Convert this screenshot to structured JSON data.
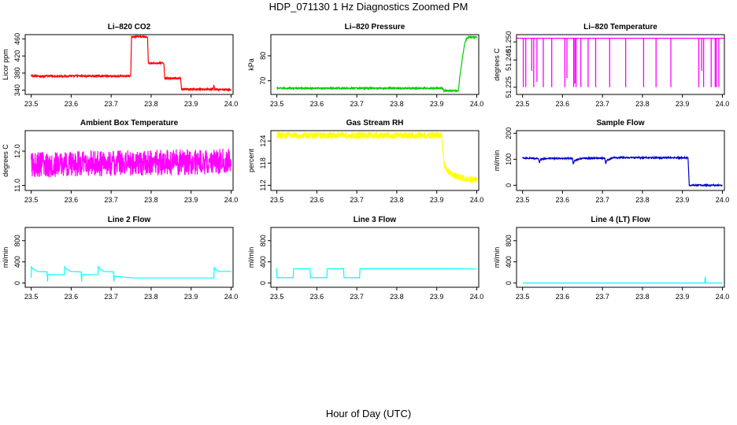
{
  "figure": {
    "title": "HDP_071130  1 Hz Diagnostics Zoomed PM",
    "xlabel": "Hour of Day (UTC)"
  },
  "chart_data": [
    {
      "type": "line",
      "title": "Li–820 CO2",
      "xlabel": "",
      "ylabel": "Licor ppm",
      "color": "#ff0000",
      "xlim": [
        23.485,
        24.005
      ],
      "ylim": [
        330,
        470
      ],
      "xticks": [
        "23.5",
        "23.6",
        "23.7",
        "23.8",
        "23.9",
        "24.0"
      ],
      "yticks": [
        "340",
        "380",
        "420",
        "460"
      ],
      "series": [
        {
          "style": "noisy",
          "noise": 2,
          "x": [
            23.5,
            23.749,
            23.751,
            23.791,
            23.793,
            23.832,
            23.834,
            23.874,
            23.876,
            23.955,
            23.957,
            23.959,
            23.961,
            24.0
          ],
          "y": [
            373,
            373,
            465,
            465,
            403,
            403,
            368,
            368,
            342,
            342,
            352,
            342,
            342,
            341
          ]
        }
      ]
    },
    {
      "type": "line",
      "title": "Li–820 Pressure",
      "xlabel": "",
      "ylabel": "kPa",
      "color": "#00cc00",
      "xlim": [
        23.485,
        24.005
      ],
      "ylim": [
        64.5,
        88.5
      ],
      "xticks": [
        "23.5",
        "23.6",
        "23.7",
        "23.8",
        "23.9",
        "24.0"
      ],
      "yticks": [
        "70",
        "80"
      ],
      "series": [
        {
          "style": "noisy",
          "noise": 0.25,
          "x": [
            23.5,
            23.915,
            23.917,
            23.954,
            23.958,
            23.965,
            23.97,
            23.975,
            23.98,
            24.0
          ],
          "y": [
            67.0,
            67.0,
            66.0,
            66.0,
            72,
            80,
            85,
            87,
            87.5,
            87.5
          ]
        }
      ]
    },
    {
      "type": "line",
      "title": "Li–820 Temperature",
      "xlabel": "",
      "ylabel": "degrees C",
      "color": "#ff00ff",
      "xlim": [
        23.485,
        24.005
      ],
      "ylim": [
        51.221,
        51.254
      ],
      "xticks": [
        "23.5",
        "23.6",
        "23.7",
        "23.8",
        "23.9",
        "24.0"
      ],
      "yticks": [
        "51.225",
        "51.240",
        "51.250"
      ],
      "series": [
        {
          "style": "spikes",
          "base": 51.252,
          "spikes": [
            [
              23.502,
              51.225
            ],
            [
              23.508,
              51.225
            ],
            [
              23.523,
              51.234
            ],
            [
              23.528,
              51.225
            ],
            [
              23.536,
              51.228
            ],
            [
              23.552,
              51.225
            ],
            [
              23.573,
              51.225
            ],
            [
              23.606,
              51.225
            ],
            [
              23.611,
              51.23
            ],
            [
              23.628,
              51.225
            ],
            [
              23.631,
              51.227
            ],
            [
              23.634,
              51.225
            ],
            [
              23.646,
              51.225
            ],
            [
              23.664,
              51.225
            ],
            [
              23.683,
              51.225
            ],
            [
              23.718,
              51.225
            ],
            [
              23.758,
              51.225
            ],
            [
              23.803,
              51.225
            ],
            [
              23.834,
              51.225
            ],
            [
              23.871,
              51.225
            ],
            [
              23.941,
              51.225
            ],
            [
              23.948,
              51.234
            ],
            [
              23.953,
              51.225
            ],
            [
              23.972,
              51.225
            ],
            [
              23.982,
              51.225
            ],
            [
              23.985,
              51.225
            ],
            [
              23.991,
              51.225
            ]
          ]
        }
      ]
    },
    {
      "type": "line",
      "title": "Ambient Box Temperature",
      "xlabel": "",
      "ylabel": "degrees C",
      "color": "#ff00ff",
      "xlim": [
        23.485,
        24.005
      ],
      "ylim": [
        10.85,
        12.6
      ],
      "xticks": [
        "23.5",
        "23.6",
        "23.7",
        "23.8",
        "23.9",
        "24.0"
      ],
      "yticks": [
        "11.0",
        "12.0"
      ],
      "series": [
        {
          "style": "noisy",
          "noise": 0.38,
          "x": [
            23.5,
            24.0
          ],
          "y": [
            11.6,
            11.7
          ]
        }
      ]
    },
    {
      "type": "line",
      "title": "Gas Stream RH",
      "xlabel": "",
      "ylabel": "percent",
      "color": "#ffff00",
      "xlim": [
        23.485,
        24.005
      ],
      "ylim": [
        110.6,
        126.8
      ],
      "xticks": [
        "23.5",
        "23.6",
        "23.7",
        "23.8",
        "23.9",
        "24.0"
      ],
      "yticks": [
        "112",
        "118",
        "124"
      ],
      "series": [
        {
          "style": "noisy",
          "noise": 0.9,
          "x": [
            23.5,
            23.912,
            23.918,
            23.925,
            23.94,
            23.97,
            24.0
          ],
          "y": [
            125.5,
            125.5,
            118,
            116,
            114.8,
            113.8,
            113.5
          ]
        }
      ]
    },
    {
      "type": "line",
      "title": "Sample Flow",
      "xlabel": "",
      "ylabel": "ml/min",
      "color": "#0000cc",
      "xlim": [
        23.485,
        24.005
      ],
      "ylim": [
        -20,
        210
      ],
      "xticks": [
        "23.5",
        "23.6",
        "23.7",
        "23.8",
        "23.9",
        "24.0"
      ],
      "yticks": [
        "0",
        "100",
        "200"
      ],
      "series": [
        {
          "style": "noisy",
          "noise": 2.5,
          "x": [
            23.5,
            23.54,
            23.542,
            23.545,
            23.56,
            23.625,
            23.627,
            23.63,
            23.645,
            23.706,
            23.708,
            23.711,
            23.725,
            23.914,
            23.917,
            24.0
          ],
          "y": [
            105,
            103,
            85,
            98,
            104,
            103,
            80,
            95,
            103,
            105,
            82,
            96,
            106,
            106,
            0,
            0
          ]
        }
      ]
    },
    {
      "type": "line",
      "title": "Line 2 Flow",
      "xlabel": "",
      "ylabel": "ml/min",
      "color": "#00ffff",
      "xlim": [
        23.485,
        24.005
      ],
      "ylim": [
        -80,
        1050
      ],
      "xticks": [
        "23.5",
        "23.6",
        "23.7",
        "23.8",
        "23.9",
        "24.0"
      ],
      "yticks": [
        "0",
        "400",
        "800"
      ],
      "series": [
        {
          "style": "line",
          "x": [
            23.5,
            23.501,
            23.502,
            23.515,
            23.54,
            23.541,
            23.542,
            23.583,
            23.584,
            23.585,
            23.598,
            23.625,
            23.626,
            23.627,
            23.667,
            23.668,
            23.669,
            23.682,
            23.706,
            23.707,
            23.708,
            23.75,
            23.751,
            23.957,
            23.958,
            23.959,
            23.97,
            24.0
          ],
          "y": [
            100,
            320,
            280,
            220,
            210,
            30,
            160,
            155,
            320,
            280,
            220,
            210,
            30,
            160,
            155,
            320,
            280,
            220,
            210,
            30,
            130,
            100,
            95,
            95,
            300,
            260,
            220,
            220
          ]
        }
      ]
    },
    {
      "type": "line",
      "title": "Line 3 Flow",
      "xlabel": "",
      "ylabel": "ml/min",
      "color": "#00ffff",
      "xlim": [
        23.485,
        24.005
      ],
      "ylim": [
        -80,
        1050
      ],
      "xticks": [
        "23.5",
        "23.6",
        "23.7",
        "23.8",
        "23.9",
        "24.0"
      ],
      "yticks": [
        "0",
        "400",
        "800"
      ],
      "series": [
        {
          "style": "line",
          "x": [
            23.5,
            23.5,
            23.501,
            23.541,
            23.542,
            23.583,
            23.584,
            23.625,
            23.626,
            23.667,
            23.668,
            23.707,
            23.708,
            23.95,
            24.0
          ],
          "y": [
            280,
            100,
            100,
            100,
            270,
            270,
            100,
            100,
            270,
            270,
            100,
            100,
            270,
            270,
            265
          ]
        }
      ]
    },
    {
      "type": "line",
      "title": "Line 4 (LT) Flow",
      "xlabel": "",
      "ylabel": "ml/min",
      "color": "#00ffff",
      "xlim": [
        23.485,
        24.005
      ],
      "ylim": [
        -80,
        1050
      ],
      "xticks": [
        "23.5",
        "23.6",
        "23.7",
        "23.8",
        "23.9",
        "24.0"
      ],
      "yticks": [
        "0",
        "400",
        "800"
      ],
      "series": [
        {
          "style": "line",
          "x": [
            23.5,
            23.956,
            23.957,
            23.9575,
            23.958,
            24.0
          ],
          "y": [
            0,
            0,
            110,
            110,
            0,
            0
          ]
        }
      ]
    }
  ]
}
